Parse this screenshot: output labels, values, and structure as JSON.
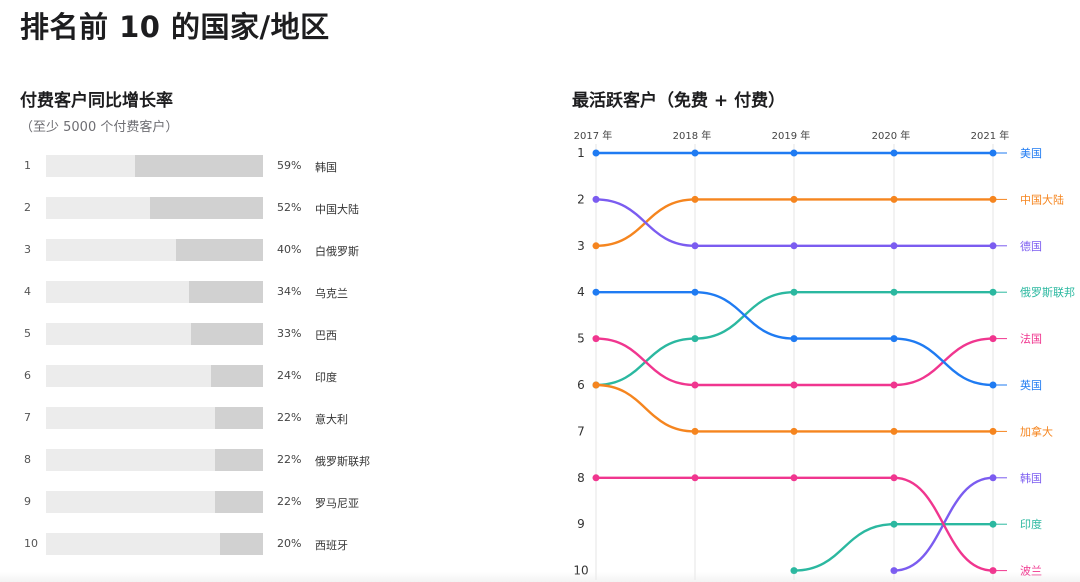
{
  "page": {
    "title": "排名前 10 的国家/地区"
  },
  "growth_panel": {
    "title": "付费客户同比增长率",
    "subtitle": "（至少 5000 个付费客户）",
    "rows": [
      {
        "rank": "1",
        "pct_label": "59%",
        "country": "韩国"
      },
      {
        "rank": "2",
        "pct_label": "52%",
        "country": "中国大陆"
      },
      {
        "rank": "3",
        "pct_label": "40%",
        "country": "白俄罗斯"
      },
      {
        "rank": "4",
        "pct_label": "34%",
        "country": "乌克兰"
      },
      {
        "rank": "5",
        "pct_label": "33%",
        "country": "巴西"
      },
      {
        "rank": "6",
        "pct_label": "24%",
        "country": "印度"
      },
      {
        "rank": "7",
        "pct_label": "22%",
        "country": "意大利"
      },
      {
        "rank": "8",
        "pct_label": "22%",
        "country": "俄罗斯联邦"
      },
      {
        "rank": "9",
        "pct_label": "22%",
        "country": "罗马尼亚"
      },
      {
        "rank": "10",
        "pct_label": "20%",
        "country": "西班牙"
      }
    ]
  },
  "active_panel": {
    "title": "最活跃客户（免费 + 付费）"
  },
  "chart_data": [
    {
      "type": "bar",
      "title": "付费客户同比增长率",
      "subtitle": "（至少 5000 个付费客户）",
      "categories": [
        "韩国",
        "中国大陆",
        "白俄罗斯",
        "乌克兰",
        "巴西",
        "印度",
        "意大利",
        "俄罗斯联邦",
        "罗马尼亚",
        "西班牙"
      ],
      "values": [
        59,
        52,
        40,
        34,
        33,
        24,
        22,
        22,
        22,
        20
      ],
      "unit": "%",
      "xlim": [
        0,
        100
      ],
      "track_color": "#ececec",
      "fill_color": "#d1d1d1"
    },
    {
      "type": "line",
      "subtype": "bump",
      "title": "最活跃客户（免费 + 付费）",
      "x": [
        "2017 年",
        "2018 年",
        "2019 年",
        "2020 年",
        "2021 年"
      ],
      "y_ticks": [
        "1",
        "2",
        "3",
        "4",
        "5",
        "6",
        "7",
        "8",
        "9",
        "10"
      ],
      "ylim": [
        1,
        10
      ],
      "y_reversed": true,
      "grid": "vertical",
      "series": [
        {
          "name": "美国",
          "color": "#1f7bf2",
          "values": [
            1,
            1,
            1,
            1,
            1
          ]
        },
        {
          "name": "中国大陆",
          "color": "#f5851f",
          "values": [
            3,
            2,
            2,
            2,
            2
          ]
        },
        {
          "name": "德国",
          "color": "#7b5cf0",
          "values": [
            2,
            3,
            3,
            3,
            3
          ]
        },
        {
          "name": "俄罗斯联邦",
          "color": "#2bb8a0",
          "values": [
            6,
            5,
            4,
            4,
            4
          ]
        },
        {
          "name": "法国",
          "color": "#f0368f",
          "values": [
            5,
            6,
            6,
            6,
            5
          ]
        },
        {
          "name": "英国",
          "color": "#1f7bf2",
          "values": [
            4,
            4,
            5,
            5,
            6
          ]
        },
        {
          "name": "加拿大",
          "color": "#f5851f",
          "values": [
            6,
            7,
            7,
            7,
            7
          ]
        },
        {
          "name": "韩国",
          "color": "#7b5cf0",
          "values": [
            null,
            null,
            null,
            10,
            8
          ]
        },
        {
          "name": "印度",
          "color": "#2bb8a0",
          "values": [
            null,
            null,
            10,
            9,
            9
          ]
        },
        {
          "name": "波兰",
          "color": "#f0368f",
          "values": [
            8,
            8,
            8,
            8,
            10
          ]
        }
      ]
    }
  ]
}
